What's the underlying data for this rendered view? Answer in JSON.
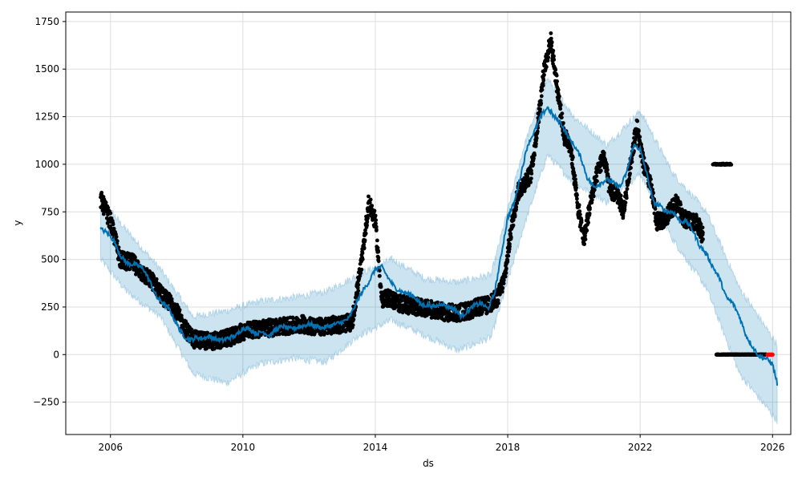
{
  "chart_data": {
    "type": "line",
    "title": "",
    "xlabel": "ds",
    "ylabel": "y",
    "xlim": [
      2004.65,
      2026.55
    ],
    "ylim": [
      -420,
      1800
    ],
    "grid": true,
    "x_ticks": [
      "2006",
      "2010",
      "2014",
      "2018",
      "2022",
      "2026"
    ],
    "y_ticks": [
      "−250",
      "0",
      "250",
      "500",
      "750",
      "1000",
      "1250",
      "1500",
      "1750"
    ],
    "colors": {
      "observed": "#000000",
      "forecast_line": "#0072B2",
      "interval_fill": "#0072B2",
      "highlight_points": "#FF0000",
      "grid": "#DDDDDD"
    },
    "series": [
      {
        "role": "forecast",
        "x": [
          2005.7,
          2005.9,
          2006.1,
          2006.3,
          2006.5,
          2006.8,
          2007.0,
          2007.2,
          2007.4,
          2007.6,
          2007.8,
          2008.0,
          2008.2,
          2008.4,
          2008.6,
          2008.8,
          2009.0,
          2009.2,
          2009.4,
          2009.6,
          2009.8,
          2010.0,
          2010.2,
          2010.4,
          2010.6,
          2010.8,
          2011.0,
          2011.2,
          2011.4,
          2011.6,
          2011.8,
          2012.0,
          2012.2,
          2012.4,
          2012.6,
          2012.8,
          2013.0,
          2013.2,
          2013.4,
          2013.6,
          2013.8,
          2014.0,
          2014.2,
          2014.4,
          2014.6,
          2014.8,
          2015.0,
          2015.2,
          2015.4,
          2015.6,
          2015.8,
          2016.0,
          2016.2,
          2016.4,
          2016.6,
          2016.8,
          2017.0,
          2017.2,
          2017.4,
          2017.6,
          2017.8,
          2018.0,
          2018.2,
          2018.4,
          2018.6,
          2018.8,
          2019.0,
          2019.2,
          2019.4,
          2019.6,
          2019.8,
          2020.0,
          2020.2,
          2020.4,
          2020.6,
          2020.8,
          2021.0,
          2021.2,
          2021.4,
          2021.6,
          2021.8,
          2022.0,
          2022.2,
          2022.4,
          2022.6,
          2022.8,
          2023.0,
          2023.2,
          2023.4,
          2023.6,
          2023.8,
          2024.0,
          2024.2,
          2024.4,
          2024.6,
          2024.8,
          2025.0,
          2025.2,
          2025.4,
          2025.6,
          2025.8,
          2026.0,
          2026.15
        ],
        "y": [
          660,
          640,
          600,
          520,
          480,
          470,
          450,
          380,
          300,
          270,
          230,
          160,
          100,
          75,
          90,
          85,
          95,
          80,
          75,
          90,
          100,
          140,
          135,
          110,
          120,
          100,
          130,
          150,
          135,
          140,
          150,
          160,
          150,
          140,
          150,
          160,
          170,
          190,
          260,
          330,
          380,
          450,
          460,
          400,
          350,
          330,
          320,
          300,
          260,
          260,
          250,
          270,
          250,
          240,
          200,
          230,
          260,
          270,
          240,
          320,
          520,
          720,
          800,
          950,
          1100,
          1170,
          1250,
          1300,
          1250,
          1220,
          1150,
          1100,
          1040,
          930,
          880,
          900,
          920,
          900,
          880,
          960,
          1100,
          1080,
          950,
          800,
          780,
          750,
          750,
          700,
          700,
          650,
          570,
          530,
          460,
          400,
          300,
          270,
          200,
          100,
          40,
          -10,
          -20,
          -50,
          -160
        ]
      },
      {
        "role": "observed_cluster_main",
        "x": [
          2005.7,
          2006.0,
          2006.3,
          2006.7,
          2007.0,
          2007.3,
          2007.6,
          2007.9,
          2008.2,
          2008.5,
          2008.8,
          2009.1,
          2009.4,
          2009.7,
          2010.0,
          2010.3,
          2010.6,
          2010.9,
          2011.2,
          2011.5,
          2011.8,
          2012.1,
          2012.4,
          2012.7,
          2013.0,
          2013.3,
          2013.6,
          2013.8,
          2014.0,
          2014.2,
          2014.4,
          2014.7,
          2015.0,
          2015.3,
          2015.6,
          2015.9,
          2016.2,
          2016.5,
          2016.8,
          2017.1,
          2017.4,
          2017.7,
          2017.9,
          2018.1,
          2018.3,
          2018.5,
          2018.7,
          2018.9,
          2019.1,
          2019.3,
          2019.5,
          2019.7,
          2019.9,
          2020.1,
          2020.3,
          2020.5,
          2020.7,
          2020.9,
          2021.1,
          2021.3,
          2021.5,
          2021.7,
          2021.9,
          2022.1,
          2022.3,
          2022.5,
          2022.7,
          2022.9,
          2023.1,
          2023.3,
          2023.5,
          2023.7,
          2023.9
        ],
        "y": [
          820,
          700,
          500,
          480,
          420,
          380,
          300,
          260,
          150,
          80,
          75,
          70,
          80,
          95,
          120,
          130,
          140,
          140,
          150,
          150,
          160,
          150,
          145,
          155,
          160,
          170,
          500,
          800,
          700,
          280,
          300,
          270,
          260,
          250,
          240,
          230,
          220,
          220,
          230,
          250,
          260,
          300,
          400,
          650,
          850,
          900,
          950,
          1200,
          1500,
          1650,
          1400,
          1150,
          1100,
          800,
          600,
          800,
          950,
          1050,
          850,
          850,
          750,
          1000,
          1200,
          1000,
          900,
          700,
          700,
          750,
          800,
          720,
          700,
          700,
          620
        ]
      },
      {
        "role": "observed_cluster_2024_high",
        "x": [
          2024.2,
          2024.5,
          2024.75
        ],
        "y": [
          1000,
          1000,
          1000
        ]
      },
      {
        "role": "observed_cluster_2024_zero",
        "x": [
          2024.3,
          2024.8,
          2025.3,
          2025.8
        ],
        "y": [
          0,
          0,
          0,
          0
        ]
      },
      {
        "role": "highlighted_recent",
        "x": [
          2025.85,
          2026.0
        ],
        "y": [
          0,
          0
        ]
      }
    ],
    "interval": {
      "x": [
        2005.7,
        2006.5,
        2007.5,
        2008.5,
        2009.5,
        2010.5,
        2011.5,
        2012.5,
        2013.5,
        2014.5,
        2015.5,
        2016.5,
        2017.5,
        2018.5,
        2019.2,
        2020.0,
        2021.0,
        2022.0,
        2023.0,
        2024.0,
        2025.0,
        2026.15
      ],
      "upper": [
        820,
        650,
        450,
        200,
        230,
        280,
        300,
        330,
        420,
        500,
        400,
        380,
        420,
        1100,
        1450,
        1250,
        1100,
        1280,
        950,
        750,
        350,
        50
      ],
      "lower": [
        500,
        330,
        200,
        -100,
        -150,
        -50,
        -20,
        -40,
        100,
        180,
        100,
        20,
        90,
        680,
        1050,
        900,
        800,
        950,
        600,
        350,
        -100,
        -350
      ]
    },
    "legend": "none"
  }
}
